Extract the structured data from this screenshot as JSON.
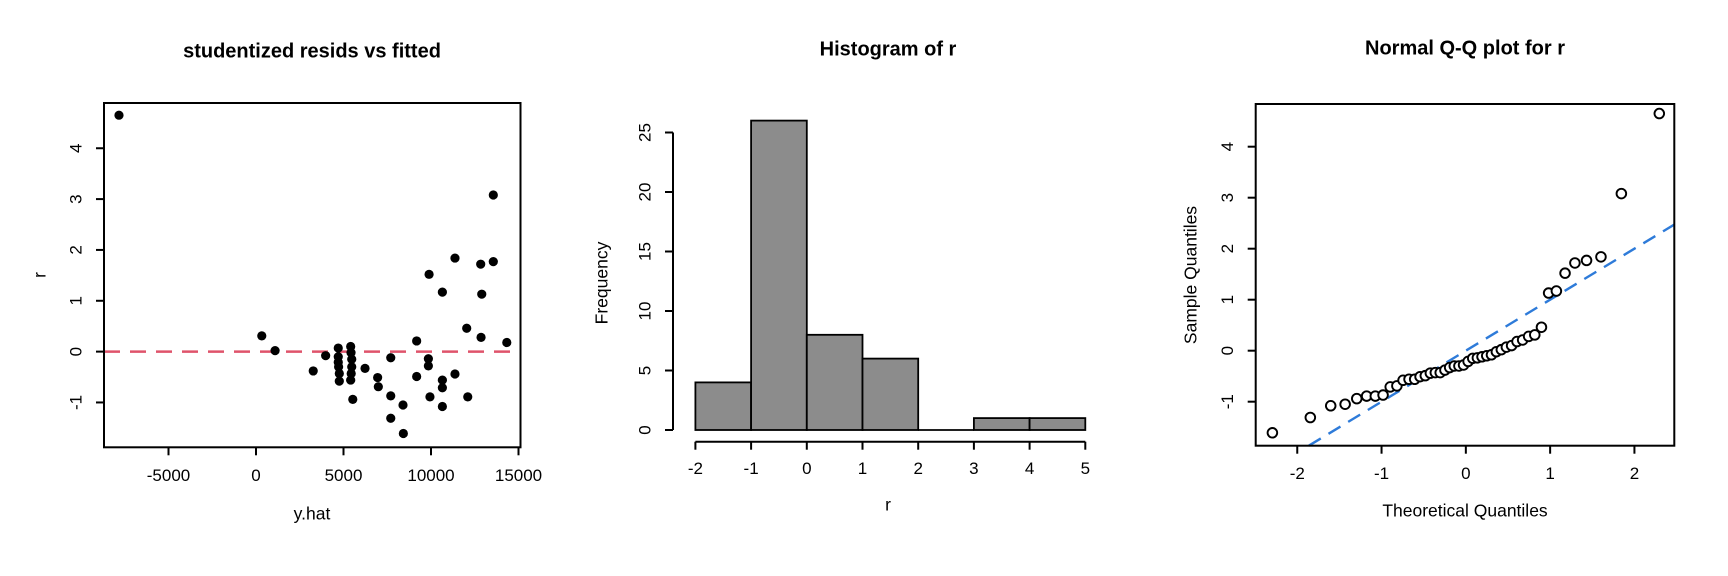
{
  "figure": {
    "background": "#ffffff",
    "text_color": "#000000"
  },
  "chart_data": [
    {
      "id": "residuals-vs-fitted",
      "type": "scatter",
      "title": "studentized resids vs fitted",
      "xlabel": "y.hat",
      "ylabel": "r",
      "xlim": [
        -8686,
        15114
      ],
      "ylim": [
        -1.882,
        4.89
      ],
      "x_ticks": [
        -5000,
        0,
        5000,
        10000,
        15000
      ],
      "x_tick_labels": [
        "-5000",
        "0",
        "5000",
        "10000",
        "15000"
      ],
      "y_ticks": [
        -1,
        0,
        1,
        2,
        3,
        4
      ],
      "y_tick_labels": [
        "-1",
        "0",
        "1",
        "2",
        "3",
        "4"
      ],
      "marker": "filled-circle",
      "point_color": "#000000",
      "grid": false,
      "reference_line": {
        "y": 0,
        "style": "dashed",
        "color": "#DF536B"
      },
      "points": [
        [
          -7830,
          4.65
        ],
        [
          330,
          0.31
        ],
        [
          1090,
          0.02
        ],
        [
          3270,
          -0.38
        ],
        [
          3980,
          -0.08
        ],
        [
          4700,
          0.07
        ],
        [
          4700,
          -0.1
        ],
        [
          4700,
          -0.21
        ],
        [
          4720,
          -0.3
        ],
        [
          4760,
          -0.43
        ],
        [
          4760,
          -0.58
        ],
        [
          5410,
          0.1
        ],
        [
          5430,
          -0.02
        ],
        [
          5470,
          -0.15
        ],
        [
          5470,
          -0.3
        ],
        [
          5440,
          -0.43
        ],
        [
          5410,
          -0.56
        ],
        [
          5530,
          -0.94
        ],
        [
          6230,
          -0.33
        ],
        [
          6950,
          -0.51
        ],
        [
          6990,
          -0.69
        ],
        [
          7700,
          -0.12
        ],
        [
          7700,
          -0.87
        ],
        [
          7700,
          -1.31
        ],
        [
          8400,
          -1.05
        ],
        [
          8420,
          -1.61
        ],
        [
          9180,
          0.21
        ],
        [
          9180,
          -0.49
        ],
        [
          9850,
          -0.14
        ],
        [
          9850,
          -0.28
        ],
        [
          9890,
          1.52
        ],
        [
          9940,
          -0.89
        ],
        [
          10650,
          1.17
        ],
        [
          10650,
          -0.56
        ],
        [
          10650,
          -0.71
        ],
        [
          10650,
          -1.08
        ],
        [
          11370,
          1.84
        ],
        [
          11370,
          -0.44
        ],
        [
          12040,
          0.46
        ],
        [
          12100,
          -0.89
        ],
        [
          12840,
          1.72
        ],
        [
          12860,
          0.28
        ],
        [
          12900,
          1.13
        ],
        [
          13560,
          3.08
        ],
        [
          13560,
          1.77
        ],
        [
          14330,
          0.18
        ]
      ]
    },
    {
      "id": "histogram-of-r",
      "type": "bar",
      "title": "Histogram of r",
      "xlabel": "r",
      "ylabel": "Frequency",
      "breaks": [
        -2,
        -1,
        0,
        1,
        2,
        3,
        4,
        5
      ],
      "counts": [
        4,
        26,
        8,
        6,
        0,
        1,
        1
      ],
      "ylim": [
        0,
        26
      ],
      "x_ticks": [
        -2,
        -1,
        0,
        1,
        2,
        3,
        4,
        5
      ],
      "x_tick_labels": [
        "-2",
        "-1",
        "0",
        "1",
        "2",
        "3",
        "4",
        "5"
      ],
      "y_ticks": [
        0,
        5,
        10,
        15,
        20,
        25
      ],
      "y_tick_labels": [
        "0",
        "5",
        "10",
        "15",
        "20",
        "25"
      ],
      "bar_fill": "#8C8C8C",
      "bar_border": "#000000",
      "grid": false
    },
    {
      "id": "normal-qq-plot",
      "type": "scatter",
      "title": "Normal Q-Q plot for r",
      "xlabel": "Theoretical Quantiles",
      "ylabel": "Sample Quantiles",
      "xlim": [
        -2.493,
        2.473
      ],
      "ylim": [
        -1.863,
        4.837
      ],
      "x_ticks": [
        -2,
        -1,
        0,
        1,
        2
      ],
      "x_tick_labels": [
        "-2",
        "-1",
        "0",
        "1",
        "2"
      ],
      "y_ticks": [
        -1,
        0,
        1,
        2,
        3,
        4
      ],
      "y_tick_labels": [
        "-1",
        "0",
        "1",
        "2",
        "3",
        "4"
      ],
      "marker": "open-circle",
      "point_color": "#000000",
      "grid": false,
      "reference_line": {
        "slope": 1,
        "intercept": 0,
        "style": "dashed",
        "color": "#2E7BD9"
      },
      "points": [
        [
          -2.295,
          -1.61
        ],
        [
          -1.845,
          -1.31
        ],
        [
          -1.603,
          -1.08
        ],
        [
          -1.432,
          -1.05
        ],
        [
          -1.294,
          -0.94
        ],
        [
          -1.177,
          -0.89
        ],
        [
          -1.074,
          -0.89
        ],
        [
          -0.982,
          -0.87
        ],
        [
          -0.897,
          -0.71
        ],
        [
          -0.818,
          -0.69
        ],
        [
          -0.745,
          -0.58
        ],
        [
          -0.674,
          -0.56
        ],
        [
          -0.607,
          -0.56
        ],
        [
          -0.543,
          -0.51
        ],
        [
          -0.481,
          -0.49
        ],
        [
          -0.421,
          -0.44
        ],
        [
          -0.362,
          -0.43
        ],
        [
          -0.304,
          -0.43
        ],
        [
          -0.248,
          -0.38
        ],
        [
          -0.192,
          -0.33
        ],
        [
          -0.137,
          -0.3
        ],
        [
          -0.082,
          -0.3
        ],
        [
          -0.027,
          -0.28
        ],
        [
          0.027,
          -0.21
        ],
        [
          0.082,
          -0.15
        ],
        [
          0.137,
          -0.14
        ],
        [
          0.192,
          -0.12
        ],
        [
          0.248,
          -0.1
        ],
        [
          0.304,
          -0.08
        ],
        [
          0.362,
          -0.02
        ],
        [
          0.421,
          0.02
        ],
        [
          0.481,
          0.07
        ],
        [
          0.543,
          0.1
        ],
        [
          0.607,
          0.18
        ],
        [
          0.674,
          0.21
        ],
        [
          0.745,
          0.28
        ],
        [
          0.818,
          0.31
        ],
        [
          0.897,
          0.46
        ],
        [
          0.982,
          1.13
        ],
        [
          1.074,
          1.17
        ],
        [
          1.177,
          1.52
        ],
        [
          1.294,
          1.72
        ],
        [
          1.432,
          1.77
        ],
        [
          1.603,
          1.84
        ],
        [
          1.845,
          3.08
        ],
        [
          2.295,
          4.65
        ]
      ]
    }
  ]
}
